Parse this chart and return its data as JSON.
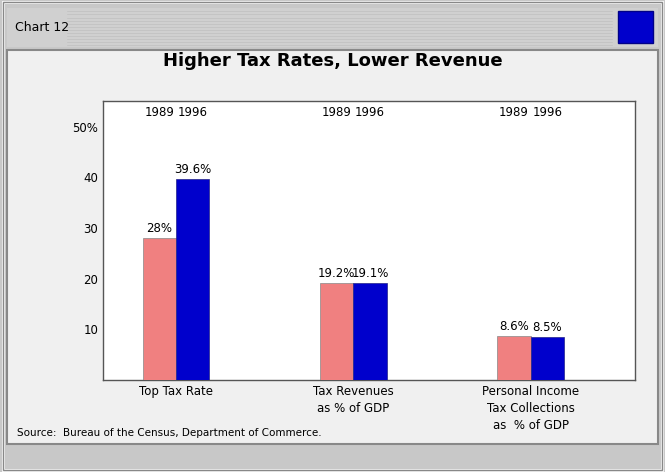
{
  "title": "Higher Tax Rates, Lower Revenue",
  "chart_label": "Chart 12",
  "source": "Source:  Bureau of the Census, Department of Commerce.",
  "groups": [
    {
      "label": "Top Tax Rate",
      "values_1989": 28.0,
      "values_1996": 39.6,
      "label_1989": "28%",
      "label_1996": "39.6%"
    },
    {
      "label": "Tax Revenues\nas % of GDP",
      "values_1989": 19.2,
      "values_1996": 19.1,
      "label_1989": "19.2%",
      "label_1996": "19.1%"
    },
    {
      "label": "Personal Income\nTax Collections\nas  % of GDP",
      "values_1989": 8.6,
      "values_1996": 8.5,
      "label_1989": "8.6%",
      "label_1996": "8.5%"
    }
  ],
  "color_1989": "#F08080",
  "color_1996": "#0000CC",
  "ylim": [
    0,
    55
  ],
  "yticks": [
    10,
    20,
    30,
    40,
    50
  ],
  "ytick_labels": [
    "10",
    "20",
    "30",
    "40",
    "50%"
  ],
  "bg_outer": "#C8C8C8",
  "bg_inner": "#F0F0F0",
  "bg_plot": "#FFFFFF",
  "title_fontsize": 13,
  "label_fontsize": 8.5,
  "year_fontsize": 8.5,
  "value_fontsize": 8.5,
  "source_fontsize": 7.5,
  "bar_width": 0.32,
  "group_positions": [
    1.0,
    2.7,
    4.4
  ]
}
